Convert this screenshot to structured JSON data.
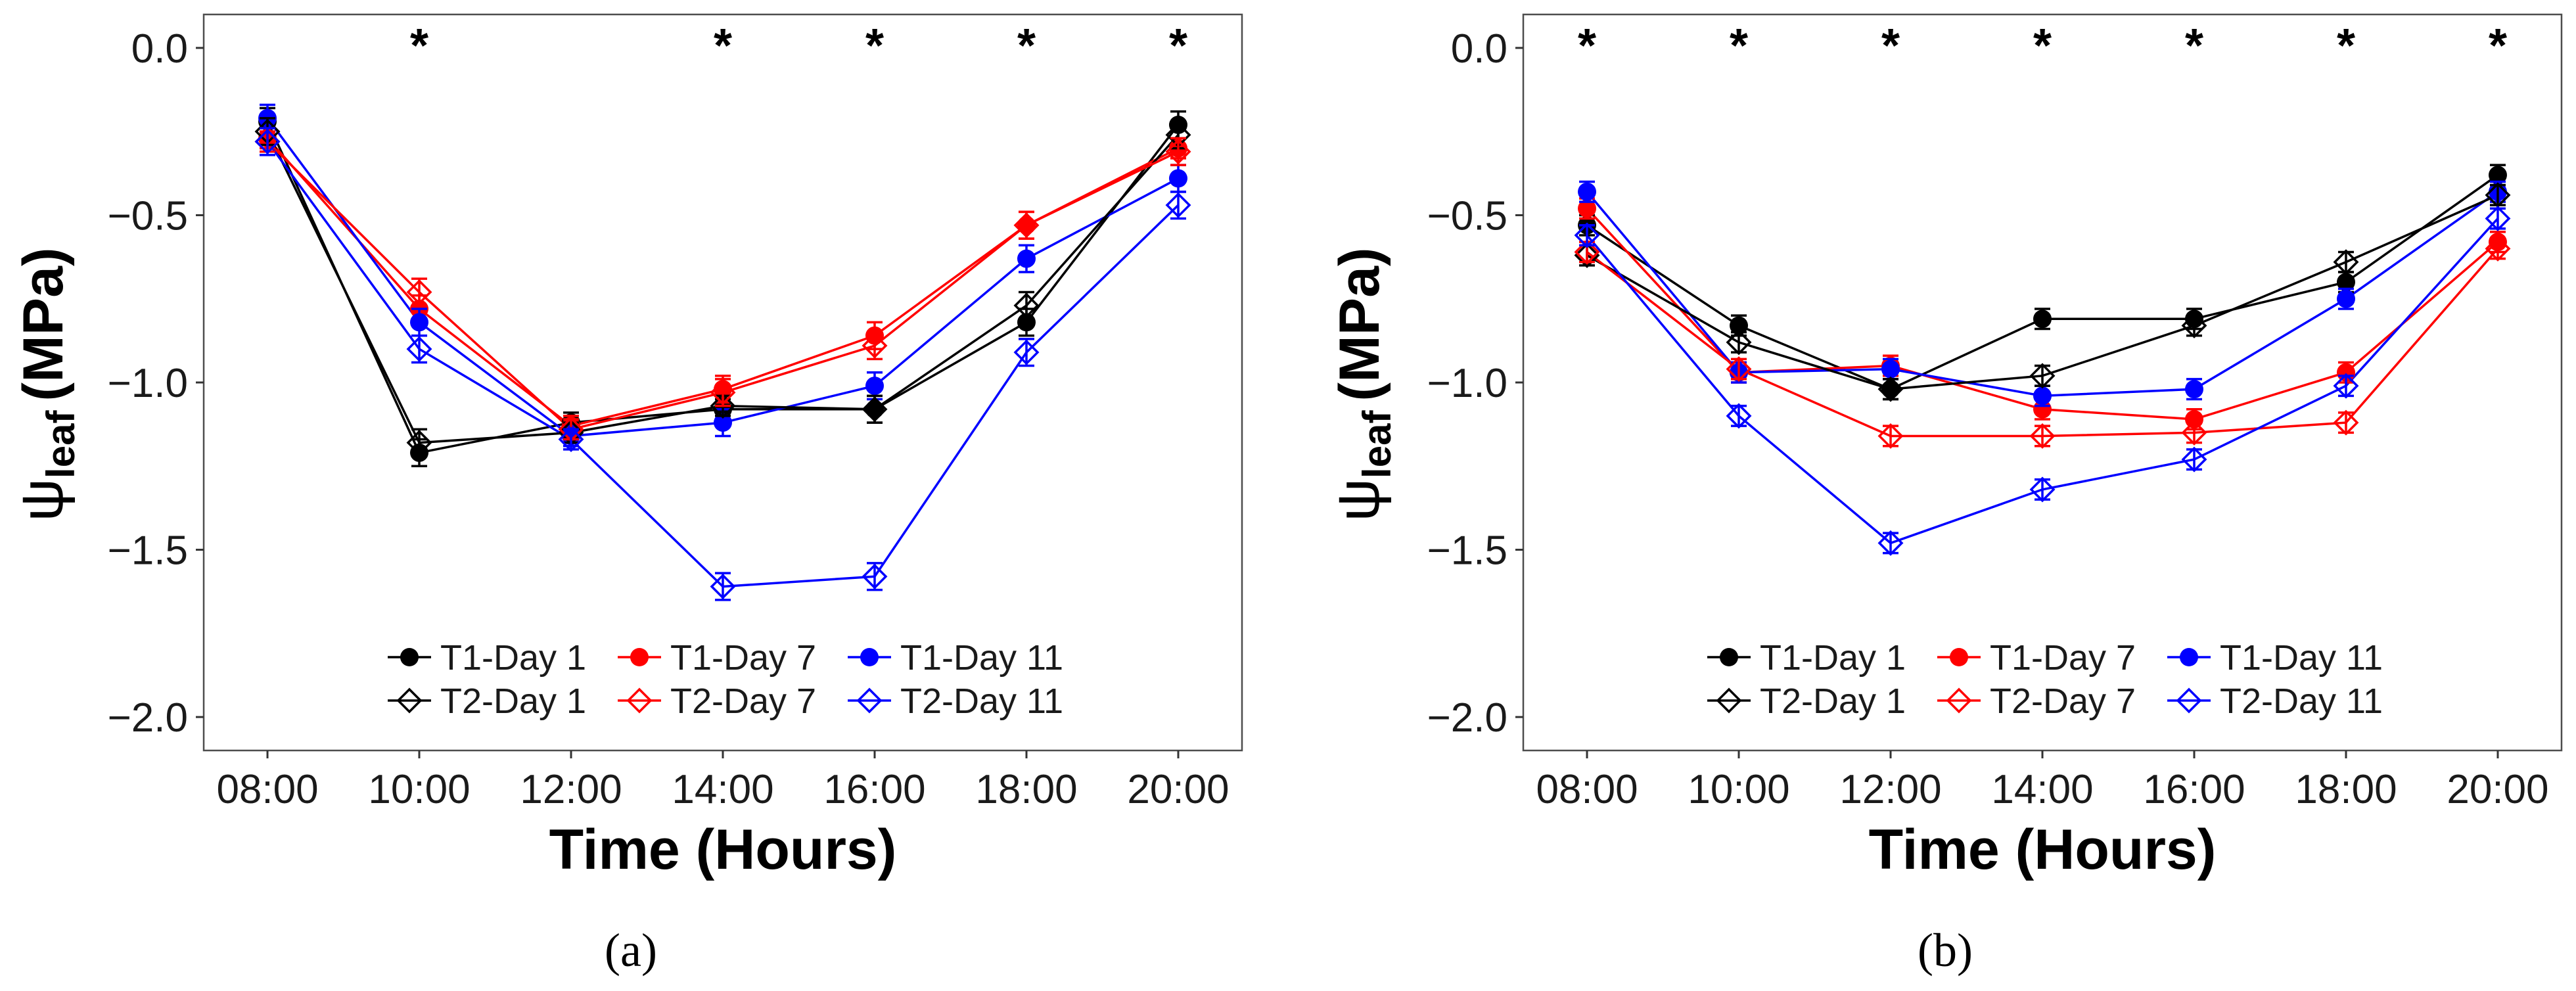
{
  "chart_data": [
    {
      "type": "line",
      "panel_label": "(a)",
      "categories": [
        "08:00",
        "10:00",
        "12:00",
        "14:00",
        "16:00",
        "18:00",
        "20:00"
      ],
      "xlabel": "Time (Hours)",
      "ylabel_symbol": "ψ",
      "ylabel_subscript": "leaf",
      "ylabel_unit": "(MPa)",
      "ylim": [
        -2.1,
        0.1
      ],
      "yticks": [
        0.0,
        -0.5,
        -1.0,
        -1.5,
        -2.0
      ],
      "ytick_labels": [
        "0.0",
        "−0.5",
        "−1.0",
        "−1.5",
        "−2.0"
      ],
      "significance": {
        "symbol": "*",
        "categories": [
          "10:00",
          "14:00",
          "16:00",
          "18:00",
          "20:00"
        ]
      },
      "legend_position": "bottom-center",
      "series": [
        {
          "name": "T1-Day 1",
          "color": "#000000",
          "marker": "filled-circle",
          "values": [
            -0.22,
            -1.21,
            -1.12,
            -1.08,
            -1.08,
            -0.82,
            -0.23
          ],
          "errors": [
            0.04,
            0.04,
            0.03,
            0.03,
            0.04,
            0.04,
            0.04
          ]
        },
        {
          "name": "T1-Day 7",
          "color": "#ff0000",
          "marker": "filled-circle",
          "values": [
            -0.27,
            -0.78,
            -1.13,
            -1.02,
            -0.86,
            -0.53,
            -0.3
          ],
          "errors": [
            0.03,
            0.04,
            0.03,
            0.04,
            0.04,
            0.04,
            0.03
          ]
        },
        {
          "name": "T1-Day 11",
          "color": "#0000ff",
          "marker": "filled-circle",
          "values": [
            -0.21,
            -0.82,
            -1.16,
            -1.12,
            -1.01,
            -0.63,
            -0.39
          ],
          "errors": [
            0.04,
            0.04,
            0.03,
            0.04,
            0.04,
            0.04,
            0.04
          ]
        },
        {
          "name": "T2-Day 1",
          "color": "#000000",
          "marker": "open-diamond",
          "values": [
            -0.25,
            -1.18,
            -1.15,
            -1.07,
            -1.08,
            -0.77,
            -0.26
          ],
          "errors": [
            0.04,
            0.04,
            0.03,
            0.03,
            0.04,
            0.04,
            0.04
          ]
        },
        {
          "name": "T2-Day 7",
          "color": "#ff0000",
          "marker": "open-diamond",
          "values": [
            -0.28,
            -0.73,
            -1.14,
            -1.03,
            -0.89,
            -0.53,
            -0.31
          ],
          "errors": [
            0.03,
            0.04,
            0.03,
            0.04,
            0.04,
            0.04,
            0.04
          ]
        },
        {
          "name": "T2-Day 11",
          "color": "#0000ff",
          "marker": "open-diamond",
          "values": [
            -0.28,
            -0.9,
            -1.17,
            -1.61,
            -1.58,
            -0.91,
            -0.47
          ],
          "errors": [
            0.04,
            0.04,
            0.03,
            0.04,
            0.04,
            0.04,
            0.04
          ]
        }
      ]
    },
    {
      "type": "line",
      "panel_label": "(b)",
      "categories": [
        "08:00",
        "10:00",
        "12:00",
        "14:00",
        "16:00",
        "18:00",
        "20:00"
      ],
      "xlabel": "Time (Hours)",
      "ylabel_symbol": "ψ",
      "ylabel_subscript": "leaf",
      "ylabel_unit": "(MPa)",
      "ylim": [
        -2.1,
        0.1
      ],
      "yticks": [
        0.0,
        -0.5,
        -1.0,
        -1.5,
        -2.0
      ],
      "ytick_labels": [
        "0.0",
        "−0.5",
        "−1.0",
        "−1.5",
        "−2.0"
      ],
      "significance": {
        "symbol": "*",
        "categories": [
          "08:00",
          "10:00",
          "12:00",
          "14:00",
          "16:00",
          "18:00",
          "20:00"
        ]
      },
      "legend_position": "bottom-center",
      "series": [
        {
          "name": "T1-Day 1",
          "color": "#000000",
          "marker": "filled-circle",
          "values": [
            -0.53,
            -0.83,
            -1.02,
            -0.81,
            -0.81,
            -0.7,
            -0.38
          ],
          "errors": [
            0.03,
            0.03,
            0.03,
            0.03,
            0.03,
            0.03,
            0.03
          ]
        },
        {
          "name": "T1-Day 7",
          "color": "#ff0000",
          "marker": "filled-circle",
          "values": [
            -0.48,
            -0.97,
            -0.95,
            -1.08,
            -1.11,
            -0.97,
            -0.58
          ],
          "errors": [
            0.03,
            0.03,
            0.03,
            0.03,
            0.03,
            0.03,
            0.03
          ]
        },
        {
          "name": "T1-Day 11",
          "color": "#0000ff",
          "marker": "filled-circle",
          "values": [
            -0.43,
            -0.97,
            -0.96,
            -1.04,
            -1.02,
            -0.75,
            -0.43
          ],
          "errors": [
            0.03,
            0.03,
            0.03,
            0.03,
            0.03,
            0.03,
            0.03
          ]
        },
        {
          "name": "T2-Day 1",
          "color": "#000000",
          "marker": "open-diamond",
          "values": [
            -0.62,
            -0.88,
            -1.02,
            -0.98,
            -0.83,
            -0.64,
            -0.44
          ],
          "errors": [
            0.03,
            0.03,
            0.03,
            0.03,
            0.03,
            0.03,
            0.03
          ]
        },
        {
          "name": "T2-Day 7",
          "color": "#ff0000",
          "marker": "open-diamond",
          "values": [
            -0.61,
            -0.96,
            -1.16,
            -1.16,
            -1.15,
            -1.12,
            -0.6
          ],
          "errors": [
            0.03,
            0.03,
            0.03,
            0.03,
            0.03,
            0.03,
            0.03
          ]
        },
        {
          "name": "T2-Day 11",
          "color": "#0000ff",
          "marker": "open-diamond",
          "values": [
            -0.56,
            -1.1,
            -1.48,
            -1.32,
            -1.23,
            -1.01,
            -0.51
          ],
          "errors": [
            0.03,
            0.03,
            0.03,
            0.03,
            0.03,
            0.03,
            0.03
          ]
        }
      ]
    }
  ]
}
